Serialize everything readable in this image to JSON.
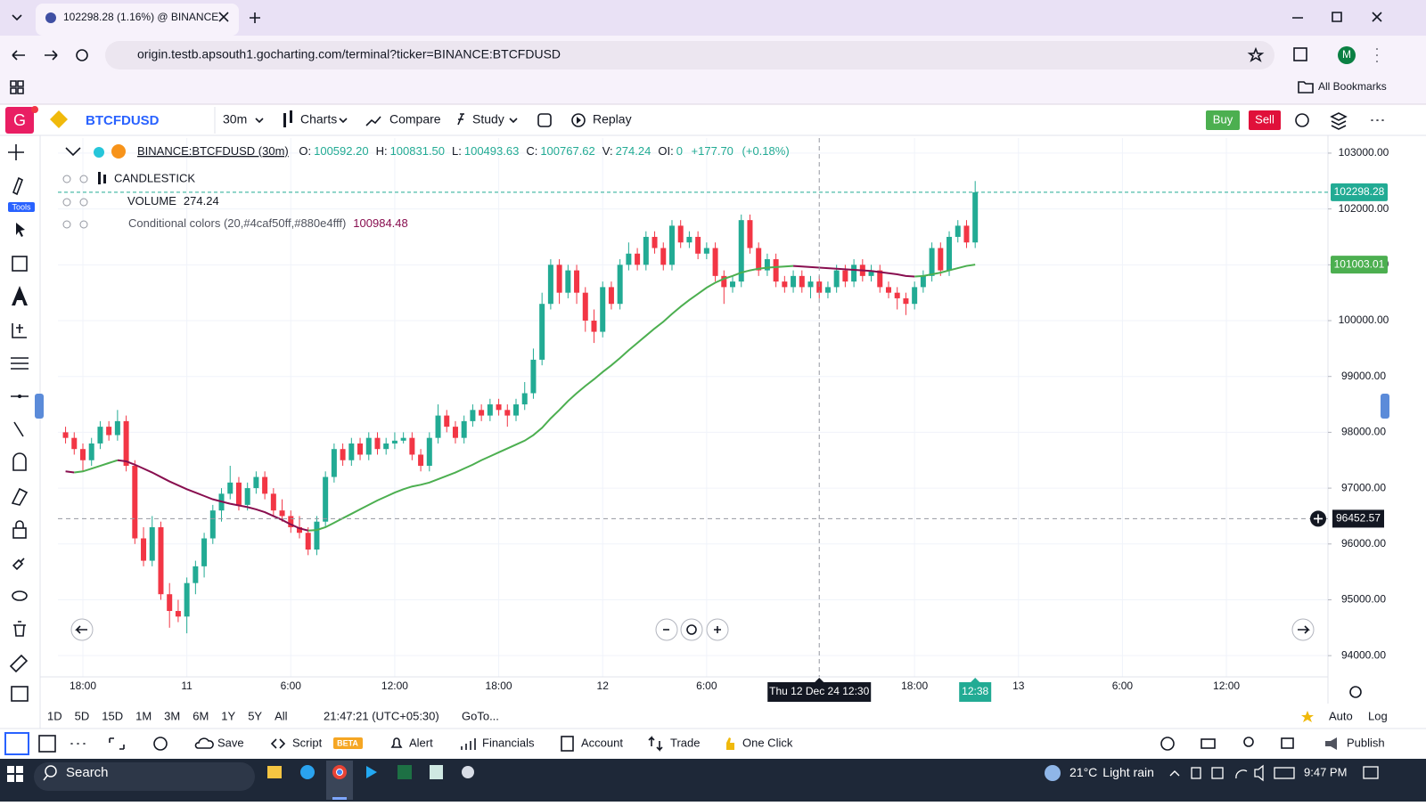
{
  "browser": {
    "tab_title": "102298.28 (1.16%) @ BINANCE",
    "url": "origin.testb.apsouth1.gocharting.com/terminal?ticker=BINANCE:BTCFDUSD",
    "bookmarks": "All Bookmarks",
    "profile": "M"
  },
  "app": {
    "logo": "G",
    "symbol": "BTCFDUSD",
    "interval": "30m",
    "menu": [
      "Charts",
      "Compare",
      "Study",
      "Replay"
    ],
    "buy": "Buy",
    "sell": "Sell",
    "tools_label": "Tools"
  },
  "legend": {
    "symbol": "BINANCE:BTCFDUSD (30m)",
    "fields": [
      {
        "label": "O:",
        "value": "100592.20"
      },
      {
        "label": "H:",
        "value": "100831.50"
      },
      {
        "label": "L:",
        "value": "100493.63"
      },
      {
        "label": "C:",
        "value": "100767.62"
      },
      {
        "label": "V:",
        "value": "274.24"
      },
      {
        "label": "OI:",
        "value": "0"
      }
    ],
    "change": "+177.70",
    "change_pct": "(+0.18%)"
  },
  "indicators": [
    {
      "name": "CANDLESTICK"
    },
    {
      "name": "VOLUME",
      "value": "274.24"
    },
    {
      "name": "Conditional colors (20,#4caf50ff,#880e4fff)",
      "value": "100984.48"
    }
  ],
  "chart_data": {
    "type": "candlestick",
    "up_color": "#22ab94",
    "down_color": "#f23645",
    "x": [
      17,
      17.5,
      18,
      18.5,
      19,
      19.5,
      20,
      20.5,
      21,
      21.5,
      22,
      22.5,
      23,
      23.5,
      24,
      24.5,
      25,
      25.5,
      26,
      26.5,
      27,
      27.5,
      28,
      28.5,
      29,
      29.5,
      30,
      30.5,
      31,
      31.5,
      32,
      32.5,
      33,
      33.5,
      34,
      34.5,
      35,
      35.5,
      36,
      36.5,
      37,
      37.5,
      38,
      38.5,
      39,
      39.5,
      40,
      40.5,
      41,
      41.5,
      42,
      42.5,
      43,
      43.5,
      44,
      44.5,
      45,
      45.5,
      46,
      46.5,
      47,
      47.5,
      48,
      48.5,
      49,
      49.5,
      50,
      50.5,
      51,
      51.5,
      52,
      52.5,
      53,
      53.5,
      54,
      54.5,
      55,
      55.5,
      56,
      56.5,
      57,
      57.5,
      58,
      58.5,
      59,
      59.5,
      60,
      60.5,
      61,
      61.5,
      62,
      62.5,
      63,
      63.5,
      64,
      64.5,
      65,
      65.5,
      66,
      66.5,
      67,
      67.5,
      68,
      68.5,
      69,
      69.5
    ],
    "candles": [
      [
        98000,
        98100,
        97800,
        97900
      ],
      [
        97900,
        98000,
        97600,
        97700
      ],
      [
        97700,
        97800,
        97300,
        97500
      ],
      [
        97500,
        97900,
        97400,
        97800
      ],
      [
        97800,
        98200,
        97700,
        98100
      ],
      [
        98100,
        98200,
        97850,
        97950
      ],
      [
        97950,
        98400,
        97850,
        98200
      ],
      [
        98200,
        98300,
        97300,
        97400
      ],
      [
        97400,
        97500,
        96000,
        96100
      ],
      [
        96100,
        96300,
        95600,
        95700
      ],
      [
        95700,
        96500,
        95600,
        96300
      ],
      [
        96300,
        96400,
        95000,
        95100
      ],
      [
        95100,
        95300,
        94500,
        94800
      ],
      [
        94800,
        95000,
        94600,
        94700
      ],
      [
        94700,
        95400,
        94400,
        95300
      ],
      [
        95300,
        95700,
        95100,
        95600
      ],
      [
        95600,
        96200,
        95400,
        96100
      ],
      [
        96100,
        96700,
        96000,
        96600
      ],
      [
        96600,
        97000,
        96400,
        96900
      ],
      [
        96900,
        97400,
        96800,
        97100
      ],
      [
        97100,
        97200,
        96600,
        96700
      ],
      [
        96700,
        97100,
        96600,
        97000
      ],
      [
        97000,
        97300,
        96900,
        97200
      ],
      [
        97200,
        97300,
        96800,
        96900
      ],
      [
        96900,
        97000,
        96500,
        96600
      ],
      [
        96600,
        96800,
        96400,
        96500
      ],
      [
        96500,
        96600,
        96200,
        96300
      ],
      [
        96300,
        96500,
        96100,
        96200
      ],
      [
        96200,
        96300,
        95800,
        95900
      ],
      [
        95900,
        96500,
        95800,
        96400
      ],
      [
        96400,
        97300,
        96300,
        97200
      ],
      [
        97200,
        97800,
        97100,
        97700
      ],
      [
        97700,
        97800,
        97400,
        97500
      ],
      [
        97500,
        97900,
        97400,
        97800
      ],
      [
        97800,
        97900,
        97500,
        97600
      ],
      [
        97600,
        98000,
        97500,
        97900
      ],
      [
        97900,
        98000,
        97600,
        97700
      ],
      [
        97700,
        97900,
        97600,
        97800
      ],
      [
        97800,
        98000,
        97700,
        97850
      ],
      [
        97850,
        98000,
        97800,
        97900
      ],
      [
        97900,
        98000,
        97500,
        97600
      ],
      [
        97600,
        97700,
        97300,
        97400
      ],
      [
        97400,
        98000,
        97300,
        97900
      ],
      [
        97900,
        98500,
        97800,
        98300
      ],
      [
        98300,
        98400,
        98000,
        98100
      ],
      [
        98100,
        98200,
        97800,
        97900
      ],
      [
        97900,
        98300,
        97800,
        98200
      ],
      [
        98200,
        98500,
        98100,
        98400
      ],
      [
        98400,
        98500,
        98200,
        98300
      ],
      [
        98300,
        98600,
        98200,
        98500
      ],
      [
        98500,
        98600,
        98300,
        98400
      ],
      [
        98400,
        98500,
        98100,
        98300
      ],
      [
        98300,
        98600,
        98200,
        98500
      ],
      [
        98500,
        98900,
        98400,
        98700
      ],
      [
        98700,
        99500,
        98600,
        99300
      ],
      [
        99300,
        100500,
        99200,
        100300
      ],
      [
        100300,
        101100,
        100200,
        101000
      ],
      [
        101000,
        101100,
        100300,
        100500
      ],
      [
        100500,
        101000,
        100400,
        100900
      ],
      [
        100900,
        101000,
        100300,
        100500
      ],
      [
        100500,
        100600,
        99800,
        100000
      ],
      [
        100000,
        100200,
        99600,
        99800
      ],
      [
        99800,
        100700,
        99700,
        100600
      ],
      [
        100600,
        100700,
        100200,
        100300
      ],
      [
        100300,
        101100,
        100200,
        101000
      ],
      [
        101000,
        101400,
        100900,
        101200
      ],
      [
        101200,
        101300,
        100900,
        101000
      ],
      [
        101000,
        101600,
        100900,
        101500
      ],
      [
        101500,
        101600,
        101200,
        101300
      ],
      [
        101300,
        101400,
        100900,
        101000
      ],
      [
        101000,
        101800,
        100900,
        101700
      ],
      [
        101700,
        101800,
        101300,
        101400
      ],
      [
        101400,
        101600,
        101300,
        101500
      ],
      [
        101500,
        101600,
        101100,
        101200
      ],
      [
        101200,
        101400,
        101100,
        101300
      ],
      [
        101300,
        101400,
        100700,
        100800
      ],
      [
        100800,
        100900,
        100300,
        100600
      ],
      [
        100600,
        100800,
        100500,
        100700
      ],
      [
        100700,
        101900,
        100600,
        101800
      ],
      [
        101800,
        101900,
        101200,
        101300
      ],
      [
        101300,
        101400,
        100800,
        100900
      ],
      [
        100900,
        101200,
        100800,
        101100
      ],
      [
        101100,
        101200,
        100600,
        100700
      ],
      [
        100700,
        100800,
        100500,
        100600
      ],
      [
        100600,
        100900,
        100500,
        100800
      ],
      [
        100800,
        100900,
        100500,
        100600
      ],
      [
        100600,
        100800,
        100400,
        100700
      ],
      [
        100700,
        100800,
        100400,
        100500
      ],
      [
        100500,
        100700,
        100400,
        100600
      ],
      [
        100600,
        101000,
        100500,
        100900
      ],
      [
        100900,
        101000,
        100600,
        100700
      ],
      [
        100700,
        101100,
        100600,
        101000
      ],
      [
        101000,
        101100,
        100700,
        100800
      ],
      [
        100800,
        101000,
        100700,
        100900
      ],
      [
        100900,
        101000,
        100500,
        100600
      ],
      [
        100600,
        100700,
        100400,
        100500
      ],
      [
        100500,
        100600,
        100200,
        100400
      ],
      [
        100400,
        100500,
        100100,
        100300
      ],
      [
        100300,
        100700,
        100200,
        100600
      ],
      [
        100600,
        100900,
        100500,
        100800
      ],
      [
        100800,
        101400,
        100700,
        101300
      ],
      [
        101300,
        101400,
        100800,
        100900
      ],
      [
        100900,
        101600,
        100800,
        101500
      ],
      [
        101500,
        101800,
        101400,
        101700
      ],
      [
        101700,
        101800,
        101300,
        101400
      ],
      [
        101400,
        102500,
        101300,
        102298.28
      ]
    ],
    "ma": {
      "up_color": "#4caf50",
      "down_color": "#880e4f",
      "values": [
        97300,
        97280,
        97300,
        97350,
        97400,
        97450,
        97500,
        97480,
        97420,
        97350,
        97280,
        97200,
        97120,
        97050,
        96980,
        96920,
        96860,
        96800,
        96760,
        96720,
        96690,
        96660,
        96620,
        96570,
        96500,
        96430,
        96350,
        96280,
        96240,
        96250,
        96300,
        96380,
        96460,
        96540,
        96620,
        96700,
        96780,
        96850,
        96920,
        96980,
        97030,
        97060,
        97100,
        97160,
        97220,
        97280,
        97350,
        97420,
        97500,
        97570,
        97640,
        97710,
        97780,
        97850,
        97950,
        98080,
        98250,
        98400,
        98560,
        98700,
        98830,
        98950,
        99080,
        99200,
        99330,
        99470,
        99600,
        99730,
        99860,
        99980,
        100120,
        100250,
        100370,
        100480,
        100590,
        100680,
        100750,
        100800,
        100860,
        100900,
        100930,
        100950,
        100960,
        100970,
        100980,
        100970,
        100960,
        100950,
        100940,
        100930,
        100920,
        100910,
        100900,
        100890,
        100870,
        100850,
        100830,
        100800,
        100790,
        100800,
        100830,
        100860,
        100900,
        100940,
        100980,
        101003.01
      ]
    },
    "xlim": [
      16.56,
      89.86
    ],
    "xticks": [
      {
        "value": 18,
        "label": "18:00"
      },
      {
        "value": 24,
        "label": "11"
      },
      {
        "value": 30,
        "label": "6:00"
      },
      {
        "value": 36,
        "label": "12:00"
      },
      {
        "value": 42,
        "label": "18:00"
      },
      {
        "value": 48,
        "label": "12"
      },
      {
        "value": 54,
        "label": "6:00"
      },
      {
        "value": 66,
        "label": "18:00"
      },
      {
        "value": 72,
        "label": "13"
      },
      {
        "value": 78,
        "label": "6:00"
      },
      {
        "value": 84,
        "label": "12:00"
      }
    ],
    "ylim": [
      93620,
      103270
    ],
    "yticks": [
      {
        "value": 94000,
        "label": "94000.00"
      },
      {
        "value": 95000,
        "label": "95000.00"
      },
      {
        "value": 96000,
        "label": "96000.00"
      },
      {
        "value": 97000,
        "label": "97000.00"
      },
      {
        "value": 98000,
        "label": "98000.00"
      },
      {
        "value": 99000,
        "label": "99000.00"
      },
      {
        "value": 100000,
        "label": "100000.00"
      },
      {
        "value": 101000,
        "label": "101000.00"
      },
      {
        "value": 102000,
        "label": "102000.00"
      },
      {
        "value": 103000,
        "label": "103000.00"
      }
    ],
    "grid": true,
    "crosshair": {
      "x": 60.5,
      "x_label": "Thu 12 Dec 24 12:30",
      "y": 96452.57
    },
    "countdown_label": "12:38"
  },
  "range_bar": {
    "ranges": [
      "1D",
      "5D",
      "15D",
      "1M",
      "3M",
      "6M",
      "1Y",
      "5Y",
      "All"
    ],
    "clock": "21:47:21 (UTC+05:30)",
    "goto": "GoTo...",
    "auto": "Auto",
    "log": "Log"
  },
  "footer": {
    "save": "Save",
    "script": "Script",
    "beta": "BETA",
    "alert": "Alert",
    "financials": "Financials",
    "account": "Account",
    "trade": "Trade",
    "one_click": "One Click",
    "publish": "Publish"
  },
  "taskbar": {
    "search": "Search",
    "temperature": "21°C",
    "weather": "Light rain",
    "time": "9:47 PM"
  }
}
